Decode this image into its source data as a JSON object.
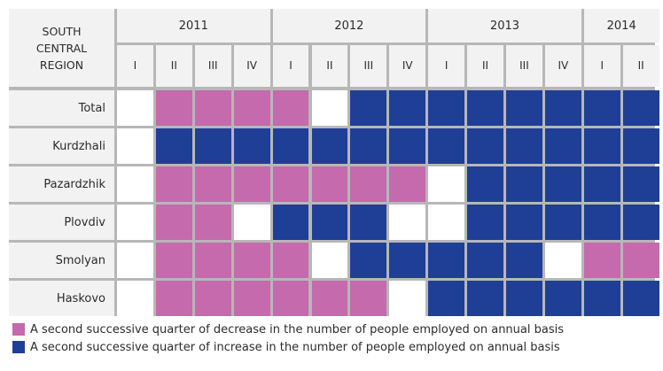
{
  "chart_data": {
    "type": "heatmap",
    "corner_label": "SOUTH\nCENTRAL\nREGION",
    "years": [
      {
        "label": "2011",
        "span": 4
      },
      {
        "label": "2012",
        "span": 4
      },
      {
        "label": "2013",
        "span": 4
      },
      {
        "label": "2014",
        "span": 2
      }
    ],
    "quarters": [
      "I",
      "II",
      "III",
      "IV",
      "I",
      "II",
      "III",
      "IV",
      "I",
      "II",
      "III",
      "IV",
      "I",
      "II"
    ],
    "rows": [
      {
        "label": "Total",
        "values": [
          "none",
          "decrease",
          "decrease",
          "decrease",
          "decrease",
          "none",
          "increase",
          "increase",
          "increase",
          "increase",
          "increase",
          "increase",
          "increase",
          "increase"
        ]
      },
      {
        "label": "Kurdzhali",
        "values": [
          "none",
          "increase",
          "increase",
          "increase",
          "increase",
          "increase",
          "increase",
          "increase",
          "increase",
          "increase",
          "increase",
          "increase",
          "increase",
          "increase"
        ]
      },
      {
        "label": "Pazardzhik",
        "values": [
          "none",
          "decrease",
          "decrease",
          "decrease",
          "decrease",
          "decrease",
          "decrease",
          "decrease",
          "none",
          "increase",
          "increase",
          "increase",
          "increase",
          "increase"
        ]
      },
      {
        "label": "Plovdiv",
        "values": [
          "none",
          "decrease",
          "decrease",
          "none",
          "increase",
          "increase",
          "increase",
          "none",
          "none",
          "increase",
          "increase",
          "increase",
          "increase",
          "increase"
        ]
      },
      {
        "label": "Smolyan",
        "values": [
          "none",
          "decrease",
          "decrease",
          "decrease",
          "decrease",
          "none",
          "increase",
          "increase",
          "increase",
          "increase",
          "increase",
          "none",
          "decrease",
          "decrease"
        ]
      },
      {
        "label": "Haskovo",
        "values": [
          "none",
          "decrease",
          "decrease",
          "decrease",
          "decrease",
          "decrease",
          "decrease",
          "none",
          "increase",
          "increase",
          "increase",
          "increase",
          "increase",
          "increase"
        ]
      }
    ],
    "colors": {
      "decrease": "#c46aad",
      "increase": "#1f3f96",
      "none": "#ffffff"
    },
    "legend": [
      {
        "key": "decrease",
        "label": "A second successive quarter of decrease in the number of people employed on annual basis"
      },
      {
        "key": "increase",
        "label": "A second successive quarter of increase in the number of people employed on annual basis"
      }
    ]
  }
}
